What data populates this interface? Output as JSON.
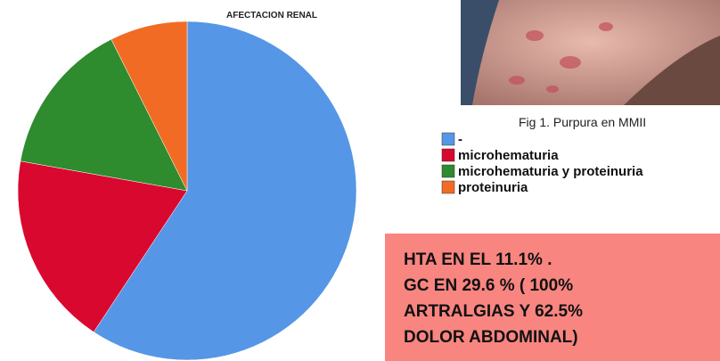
{
  "chart_data": {
    "type": "pie",
    "title": "AFECTACION RENAL",
    "categories": [
      "-",
      "microhematuria",
      "microhematuria y proteinuria",
      "proteinuria"
    ],
    "values": [
      59.3,
      18.5,
      14.8,
      7.4
    ],
    "colors": [
      "#5596e6",
      "#d9082f",
      "#2e8b2e",
      "#f26b25"
    ],
    "start_angle": 0,
    "direction": "clockwise",
    "legend": "right"
  },
  "figure": {
    "caption": "Fig 1. Purpura en MMII"
  },
  "note": {
    "lines": [
      "HTA EN EL 11.1% .",
      "GC EN 29.6 % ( 100%",
      "ARTRALGIAS Y 62.5%",
      "DOLOR ABDOMINAL)"
    ]
  }
}
